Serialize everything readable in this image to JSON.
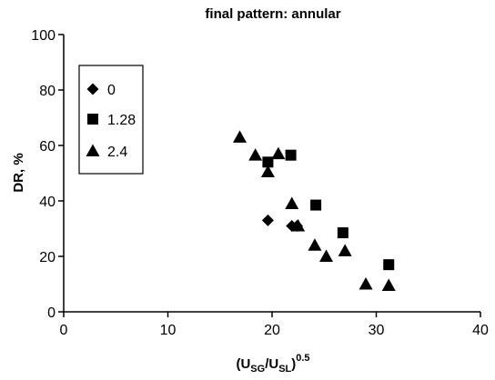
{
  "chart_data": {
    "type": "scatter",
    "title": "final pattern: annular",
    "xlabel": {
      "base": "(U",
      "sub1": "SG",
      "mid": "/U",
      "sub2": "SL",
      "close": ")",
      "sup": "0.5"
    },
    "ylabel": "DR, %",
    "xlim": [
      0,
      40
    ],
    "ylim": [
      0,
      100
    ],
    "xticks": [
      0,
      10,
      20,
      30,
      40
    ],
    "yticks": [
      0,
      20,
      40,
      60,
      80,
      100
    ],
    "grid": false,
    "legend_position": "top-left",
    "series": [
      {
        "name": "0",
        "marker": "diamond",
        "x": [
          19.6,
          21.9,
          22.4
        ],
        "y": [
          33,
          31,
          31
        ]
      },
      {
        "name": "1.28",
        "marker": "square",
        "x": [
          19.6,
          21.8,
          24.2,
          26.8,
          31.2
        ],
        "y": [
          54,
          56.5,
          38.5,
          28.5,
          17
        ]
      },
      {
        "name": "2.4",
        "marker": "triangle",
        "x": [
          16.9,
          18.4,
          19.6,
          20.6,
          21.9,
          22.5,
          24.1,
          25.2,
          27.0,
          29.0,
          31.2
        ],
        "y": [
          63,
          56.5,
          50.5,
          57,
          39,
          31,
          24,
          20,
          22,
          10,
          9.5
        ]
      }
    ]
  }
}
